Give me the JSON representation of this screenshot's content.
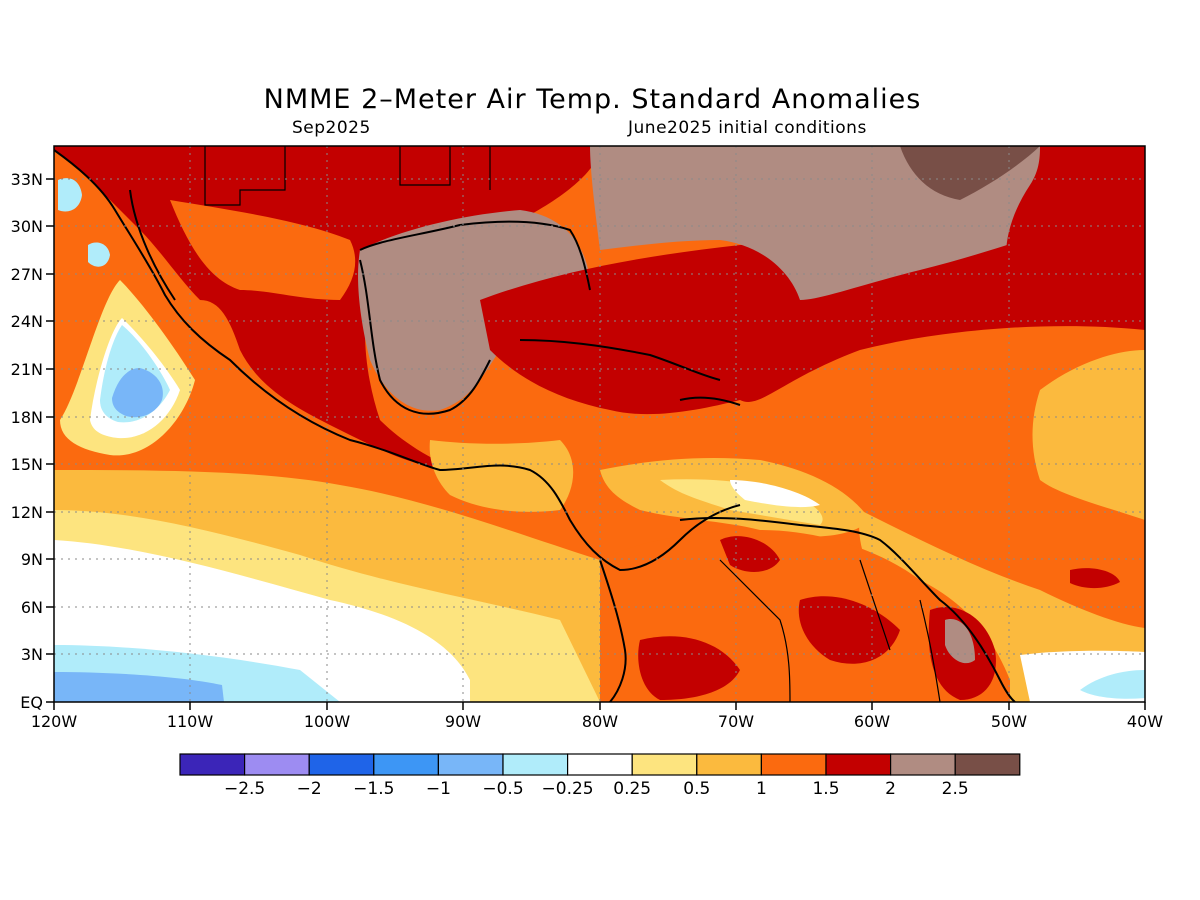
{
  "title": "NMME 2–Meter Air Temp. Standard Anomalies",
  "subtitle_left": "Sep2025",
  "subtitle_right": "June2025 initial conditions",
  "lat_labels": [
    "EQ",
    "3N",
    "6N",
    "9N",
    "12N",
    "15N",
    "18N",
    "21N",
    "24N",
    "27N",
    "30N",
    "33N"
  ],
  "lon_labels": [
    "120W",
    "110W",
    "100W",
    "90W",
    "80W",
    "70W",
    "60W",
    "50W",
    "40W"
  ],
  "colorbar": {
    "colors": [
      "#3b25b8",
      "#9d8cf2",
      "#1f64e8",
      "#3d96f5",
      "#78b6f8",
      "#b0ecfa",
      "#ffffff",
      "#fde47f",
      "#fbba3e",
      "#fb6a0f",
      "#c30000",
      "#b08c82",
      "#784f47"
    ],
    "labels": [
      "−2.5",
      "−2",
      "−1.5",
      "−1",
      "−0.5",
      "−0.25",
      "0.25",
      "0.5",
      "1",
      "1.5",
      "2",
      "2.5"
    ]
  },
  "legend_colors": {
    "ocean_background": "#fb6a0f",
    "coastline": "#000000"
  }
}
